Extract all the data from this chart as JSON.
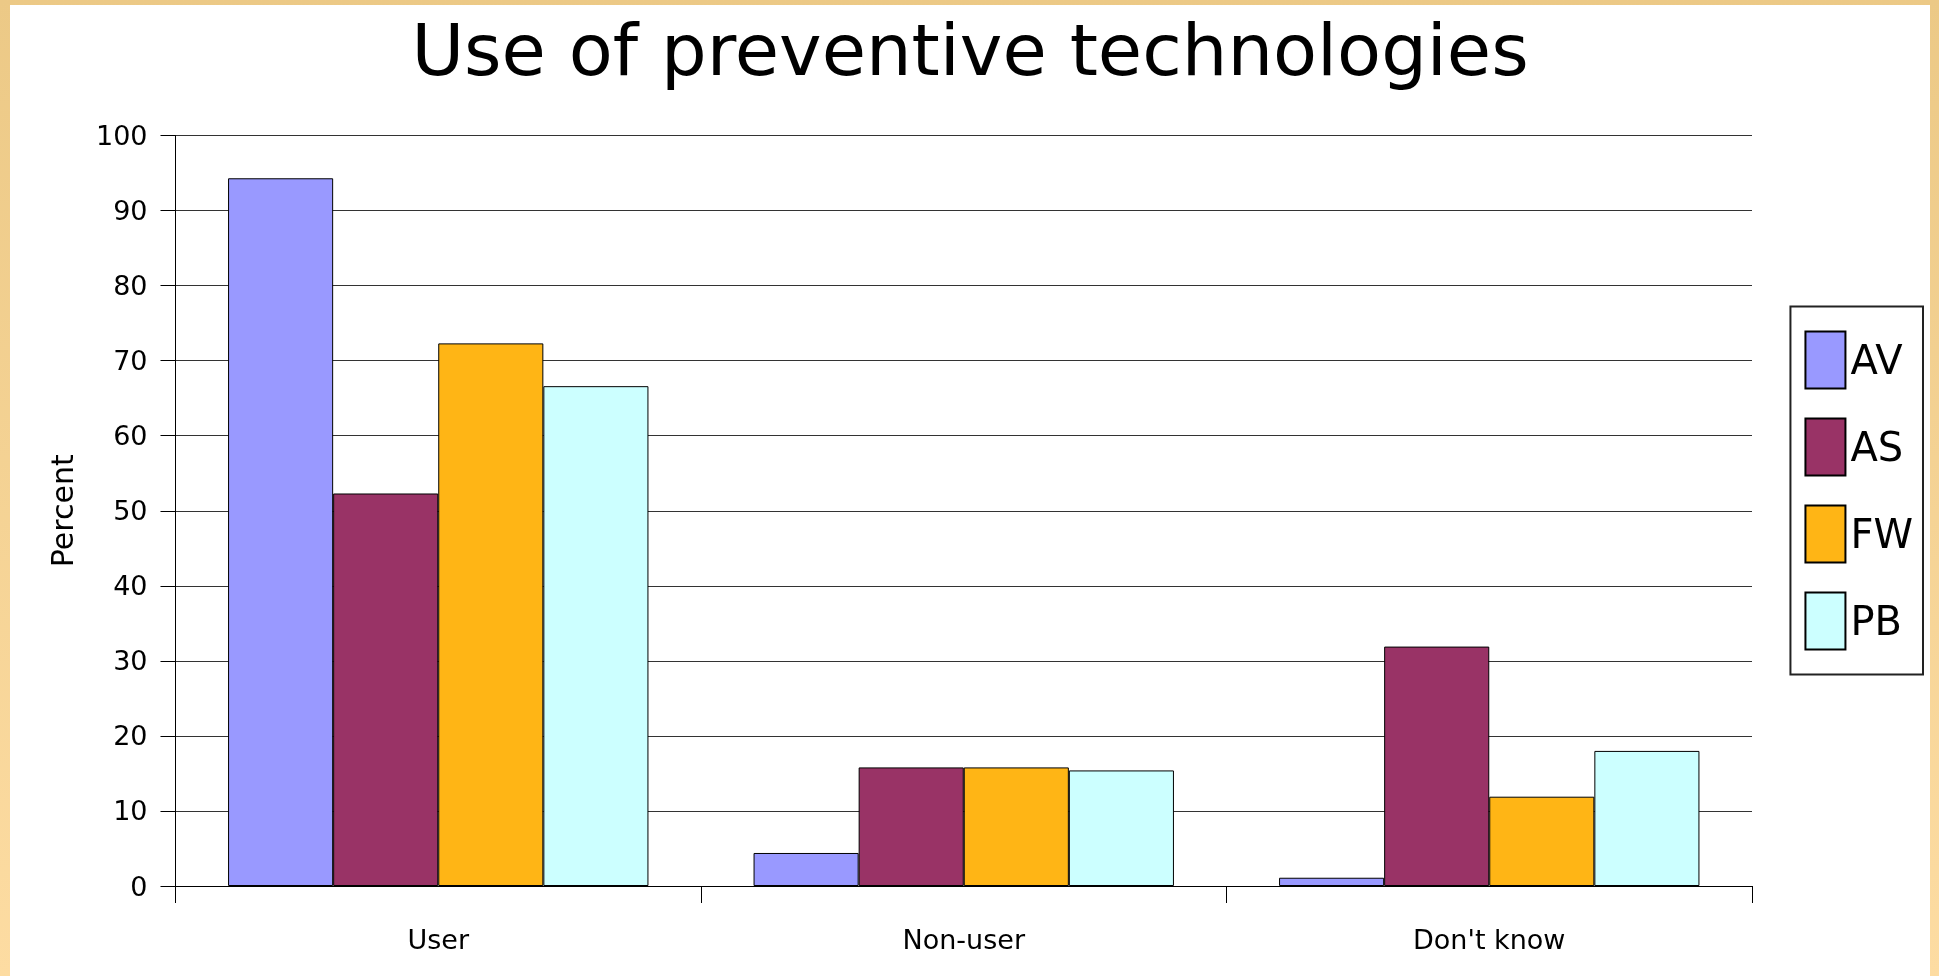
{
  "chart_data": {
    "type": "bar",
    "title": "Use of preventive technologies",
    "ylabel": "Percent",
    "categories": [
      "User",
      "Non-user",
      "Don't know"
    ],
    "series": [
      {
        "name": "AV",
        "color": "#9999ff",
        "values": [
          94.3,
          4.4,
          1.1
        ]
      },
      {
        "name": "AS",
        "color": "#993366",
        "values": [
          52.3,
          15.8,
          31.9
        ]
      },
      {
        "name": "FW",
        "color": "#ffb515",
        "values": [
          72.3,
          15.8,
          11.9
        ]
      },
      {
        "name": "PB",
        "color": "#ccffff",
        "values": [
          66.6,
          15.4,
          18.0
        ]
      }
    ],
    "ylim": [
      0,
      100
    ],
    "yticks": [
      0,
      10,
      20,
      30,
      40,
      50,
      60,
      70,
      80,
      90,
      100
    ],
    "grid": "y",
    "legend": "right"
  }
}
